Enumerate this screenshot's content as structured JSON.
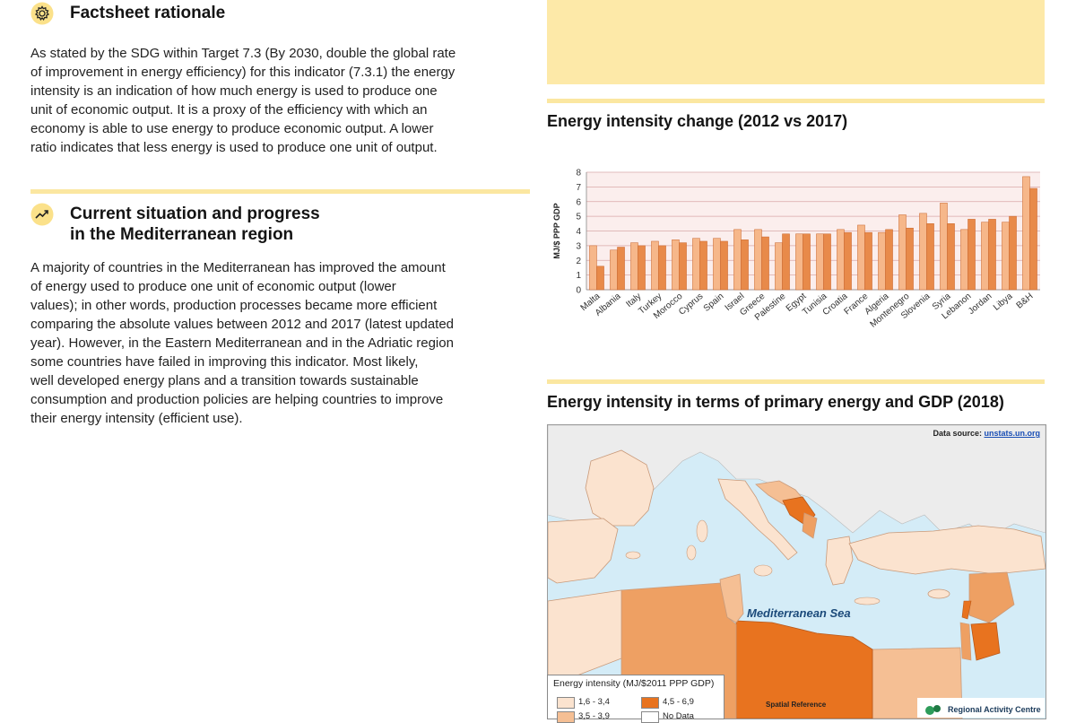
{
  "left": {
    "section1": {
      "heading": "Factsheet rationale",
      "icon": "gear-icon",
      "lines": [
        "As stated by the SDG within Target 7.3 (By 2030, double the global rate",
        "of improvement in energy efficiency) for this indicator (7.3.1) the energy",
        "intensity is an indication of how much energy is used to produce one",
        "unit of economic output. It is a proxy of the efficiency with which an",
        "economy is able to use energy to produce economic output. A lower",
        "ratio indicates that less energy is used to produce one unit of output."
      ]
    },
    "section2": {
      "heading_line1": "Current situation and progress",
      "heading_line2": "in the Mediterranean region",
      "icon": "trend-up-icon",
      "lines": [
        "A majority of countries in the Mediterranean has improved the amount",
        "of energy used to produce one unit of economic output (lower",
        "values); in other words, production processes became more efficient",
        "comparing the absolute values between 2012 and 2017 (latest updated",
        "year). However, in the Eastern Mediterranean and in the Adriatic region",
        "some countries have failed in improving this indicator. Most likely,",
        "well developed energy plans and a transition towards sustainable",
        "consumption and production policies are helping countries to improve",
        "their energy intensity (efficient use)."
      ]
    }
  },
  "right": {
    "chart_title": "Energy intensity change (2012 vs 2017)",
    "map_title": "Energy intensity in terms of primary energy and GDP (2018)",
    "map": {
      "source_label": "Data source:",
      "source_link": "unstats.un.org",
      "sea_label": "Mediterranean Sea",
      "spatial_ref": "Spatial Reference",
      "rac_label": "Regional Activity Centre",
      "legend": {
        "title": "Energy intensity (MJ/$2011 PPP GDP)",
        "items": [
          {
            "label": "1,6 - 3,4",
            "color": "#fbe3cf"
          },
          {
            "label": "4,5 - 6,9",
            "color": "#e8731f"
          },
          {
            "label": "3,5 - 3,9",
            "color": "#f5bf94"
          },
          {
            "label": "No Data",
            "color": "#ffffff"
          }
        ]
      },
      "colors": {
        "sea": "#d4ecf7",
        "low": "#fbe3cf",
        "mid": "#f5bf94",
        "midhigh": "#eea063",
        "high": "#e8731f"
      }
    }
  },
  "chart_data": {
    "type": "bar",
    "ylabel": "MJ/$ PPP GDP",
    "ylim": [
      0,
      8
    ],
    "yticks": [
      0,
      1,
      2,
      3,
      4,
      5,
      6,
      7,
      8
    ],
    "categories": [
      "Malta",
      "Albania",
      "Italy",
      "Turkey",
      "Morocco",
      "Cyprus",
      "Spain",
      "Israel",
      "Greece",
      "Palestine",
      "Egypt",
      "Tunisia",
      "Croatia",
      "France",
      "Algeria",
      "Montenegro",
      "Slovenia",
      "Syria",
      "Lebanon",
      "Jordan",
      "Libya",
      "B&H"
    ],
    "series": [
      {
        "values": [
          3.0,
          2.7,
          3.2,
          3.3,
          3.4,
          3.5,
          3.5,
          4.1,
          4.1,
          3.2,
          3.8,
          3.8,
          4.1,
          4.4,
          3.9,
          5.1,
          5.2,
          5.9,
          4.1,
          4.6,
          4.6,
          7.7
        ],
        "color": "#f6b78a"
      },
      {
        "values": [
          1.6,
          2.9,
          3.0,
          3.0,
          3.2,
          3.3,
          3.3,
          3.4,
          3.6,
          3.8,
          3.8,
          3.8,
          3.9,
          3.9,
          4.1,
          4.2,
          4.5,
          4.5,
          4.8,
          4.8,
          5.0,
          6.9
        ],
        "color": "#e88a4a"
      }
    ],
    "grid": true,
    "background": "#fbeeed"
  }
}
